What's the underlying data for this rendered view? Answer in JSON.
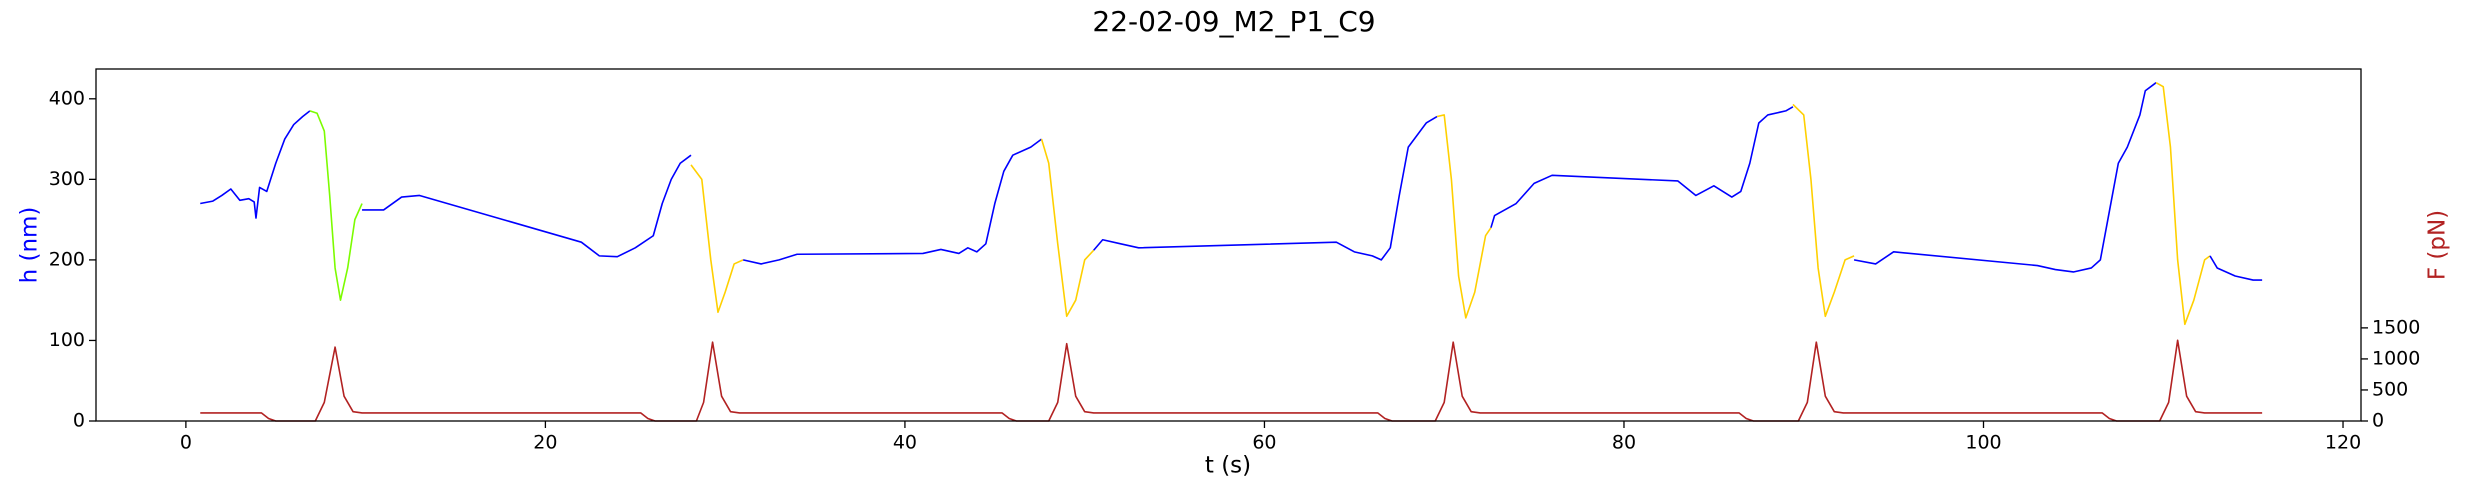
{
  "chart_data": {
    "type": "line",
    "title": "22-02-09_M2_P1_C9",
    "x_label": "t (s)",
    "y_label": "h (nm)",
    "y2_label": "F (pN)",
    "xlim": [
      -5,
      121
    ],
    "xticks": [
      0,
      20,
      40,
      60,
      80,
      100,
      120
    ],
    "ylim": [
      0,
      437
    ],
    "yticks": [
      0,
      100,
      200,
      300,
      400
    ],
    "y2lim": [
      0,
      5670
    ],
    "y2ticks": [
      0,
      500,
      1000,
      1500
    ],
    "y_color": "#0000ff",
    "y2_color": "#b22222",
    "series": [
      {
        "color": "#0000ff",
        "axis": "y",
        "x": [
          0.8,
          1.5,
          2,
          2.5,
          3,
          3.5,
          3.8,
          3.9,
          4.1,
          4.5,
          5,
          5.5,
          6,
          6.5,
          6.9
        ],
        "values": [
          270,
          273,
          280,
          288,
          274,
          276,
          272,
          252,
          290,
          285,
          320,
          350,
          368,
          378,
          385
        ]
      },
      {
        "color": "#7cfc00",
        "axis": "y",
        "x": [
          6.9,
          7.3,
          7.7,
          8.0,
          8.3,
          8.6,
          9.0,
          9.4,
          9.8
        ],
        "values": [
          385,
          382,
          360,
          280,
          190,
          150,
          190,
          250,
          270
        ]
      },
      {
        "color": "#0000ff",
        "axis": "y",
        "x": [
          9.8,
          11,
          12,
          13,
          22,
          23,
          24,
          25,
          26,
          26.5,
          27,
          27.5,
          28.1
        ],
        "values": [
          262,
          262,
          278,
          280,
          222,
          205,
          204,
          215,
          230,
          270,
          300,
          320,
          330
        ]
      },
      {
        "color": "#ffd000",
        "axis": "y",
        "x": [
          28.1,
          28.7,
          29.2,
          29.6,
          30,
          30.5,
          31
        ],
        "values": [
          318,
          300,
          200,
          135,
          160,
          195,
          200
        ]
      },
      {
        "color": "#0000ff",
        "axis": "y",
        "x": [
          31,
          32,
          33,
          34,
          41,
          42,
          43,
          43.5,
          44,
          44.5,
          45,
          45.5,
          46,
          47,
          47.6
        ],
        "values": [
          200,
          195,
          200,
          207,
          208,
          213,
          208,
          215,
          210,
          220,
          270,
          310,
          330,
          340,
          350
        ]
      },
      {
        "color": "#ffd000",
        "axis": "y",
        "x": [
          47.6,
          48,
          48.5,
          49,
          49.5,
          50,
          50.5
        ],
        "values": [
          350,
          320,
          220,
          130,
          150,
          200,
          212
        ]
      },
      {
        "color": "#0000ff",
        "axis": "y",
        "x": [
          50.5,
          51,
          52,
          53,
          64,
          65,
          66,
          66.5,
          67,
          67.5,
          68,
          69,
          69.6
        ],
        "values": [
          212,
          225,
          220,
          215,
          222,
          210,
          205,
          200,
          215,
          280,
          340,
          370,
          378
        ]
      },
      {
        "color": "#ffd000",
        "axis": "y",
        "x": [
          69.6,
          70,
          70.4,
          70.8,
          71.2,
          71.7,
          72.3,
          72.6
        ],
        "values": [
          378,
          380,
          300,
          180,
          128,
          160,
          230,
          240
        ]
      },
      {
        "color": "#0000ff",
        "axis": "y",
        "x": [
          72.6,
          72.8,
          74,
          75,
          76,
          83,
          84,
          85,
          86,
          86.5,
          87,
          87.5,
          88,
          89,
          89.4
        ],
        "values": [
          240,
          255,
          270,
          295,
          305,
          298,
          280,
          292,
          278,
          285,
          320,
          370,
          380,
          385,
          390
        ]
      },
      {
        "color": "#ffd000",
        "axis": "y",
        "x": [
          89.4,
          90,
          90.4,
          90.8,
          91.2,
          91.7,
          92.3,
          92.8
        ],
        "values": [
          393,
          380,
          300,
          190,
          130,
          160,
          200,
          205
        ]
      },
      {
        "color": "#0000ff",
        "axis": "y",
        "x": [
          92.8,
          94,
          95,
          103,
          104,
          105,
          106,
          106.5,
          107,
          107.5,
          108,
          108.7,
          109,
          109.6
        ],
        "values": [
          200,
          195,
          210,
          193,
          188,
          185,
          190,
          200,
          260,
          320,
          340,
          380,
          410,
          420
        ]
      },
      {
        "color": "#ffd000",
        "axis": "y",
        "x": [
          109.6,
          110,
          110.4,
          110.8,
          111.2,
          111.7,
          112.3,
          112.6
        ],
        "values": [
          420,
          415,
          340,
          200,
          120,
          150,
          200,
          205
        ]
      },
      {
        "color": "#0000ff",
        "axis": "y",
        "x": [
          112.6,
          113,
          114,
          115,
          115.5
        ],
        "values": [
          205,
          190,
          180,
          175,
          175
        ]
      },
      {
        "color": "#b22222",
        "axis": "y2",
        "x": [
          0.8,
          4.2,
          4.6,
          5.0,
          7.2,
          7.7,
          8.3,
          8.8,
          9.3,
          9.8,
          25.3,
          25.7,
          26.1,
          28.4,
          28.8,
          29.3,
          29.8,
          30.3,
          30.8,
          45.4,
          45.8,
          46.2,
          48.0,
          48.5,
          49.0,
          49.5,
          50.0,
          50.5,
          66.3,
          66.7,
          67.1,
          69.5,
          70.0,
          70.5,
          71.0,
          71.5,
          72.0,
          86.4,
          86.8,
          87.2,
          89.7,
          90.2,
          90.7,
          91.2,
          91.7,
          92.2,
          106.6,
          107.0,
          107.4,
          109.8,
          110.3,
          110.8,
          111.3,
          111.8,
          112.3,
          115.5
        ],
        "values": [
          130,
          130,
          40,
          0,
          0,
          300,
          1190,
          400,
          150,
          130,
          130,
          40,
          0,
          0,
          300,
          1270,
          400,
          150,
          130,
          130,
          40,
          0,
          0,
          300,
          1245,
          400,
          150,
          130,
          130,
          40,
          0,
          0,
          300,
          1270,
          400,
          150,
          130,
          130,
          40,
          0,
          0,
          300,
          1270,
          400,
          150,
          130,
          130,
          40,
          0,
          0,
          300,
          1300,
          400,
          150,
          130,
          130
        ]
      }
    ]
  }
}
